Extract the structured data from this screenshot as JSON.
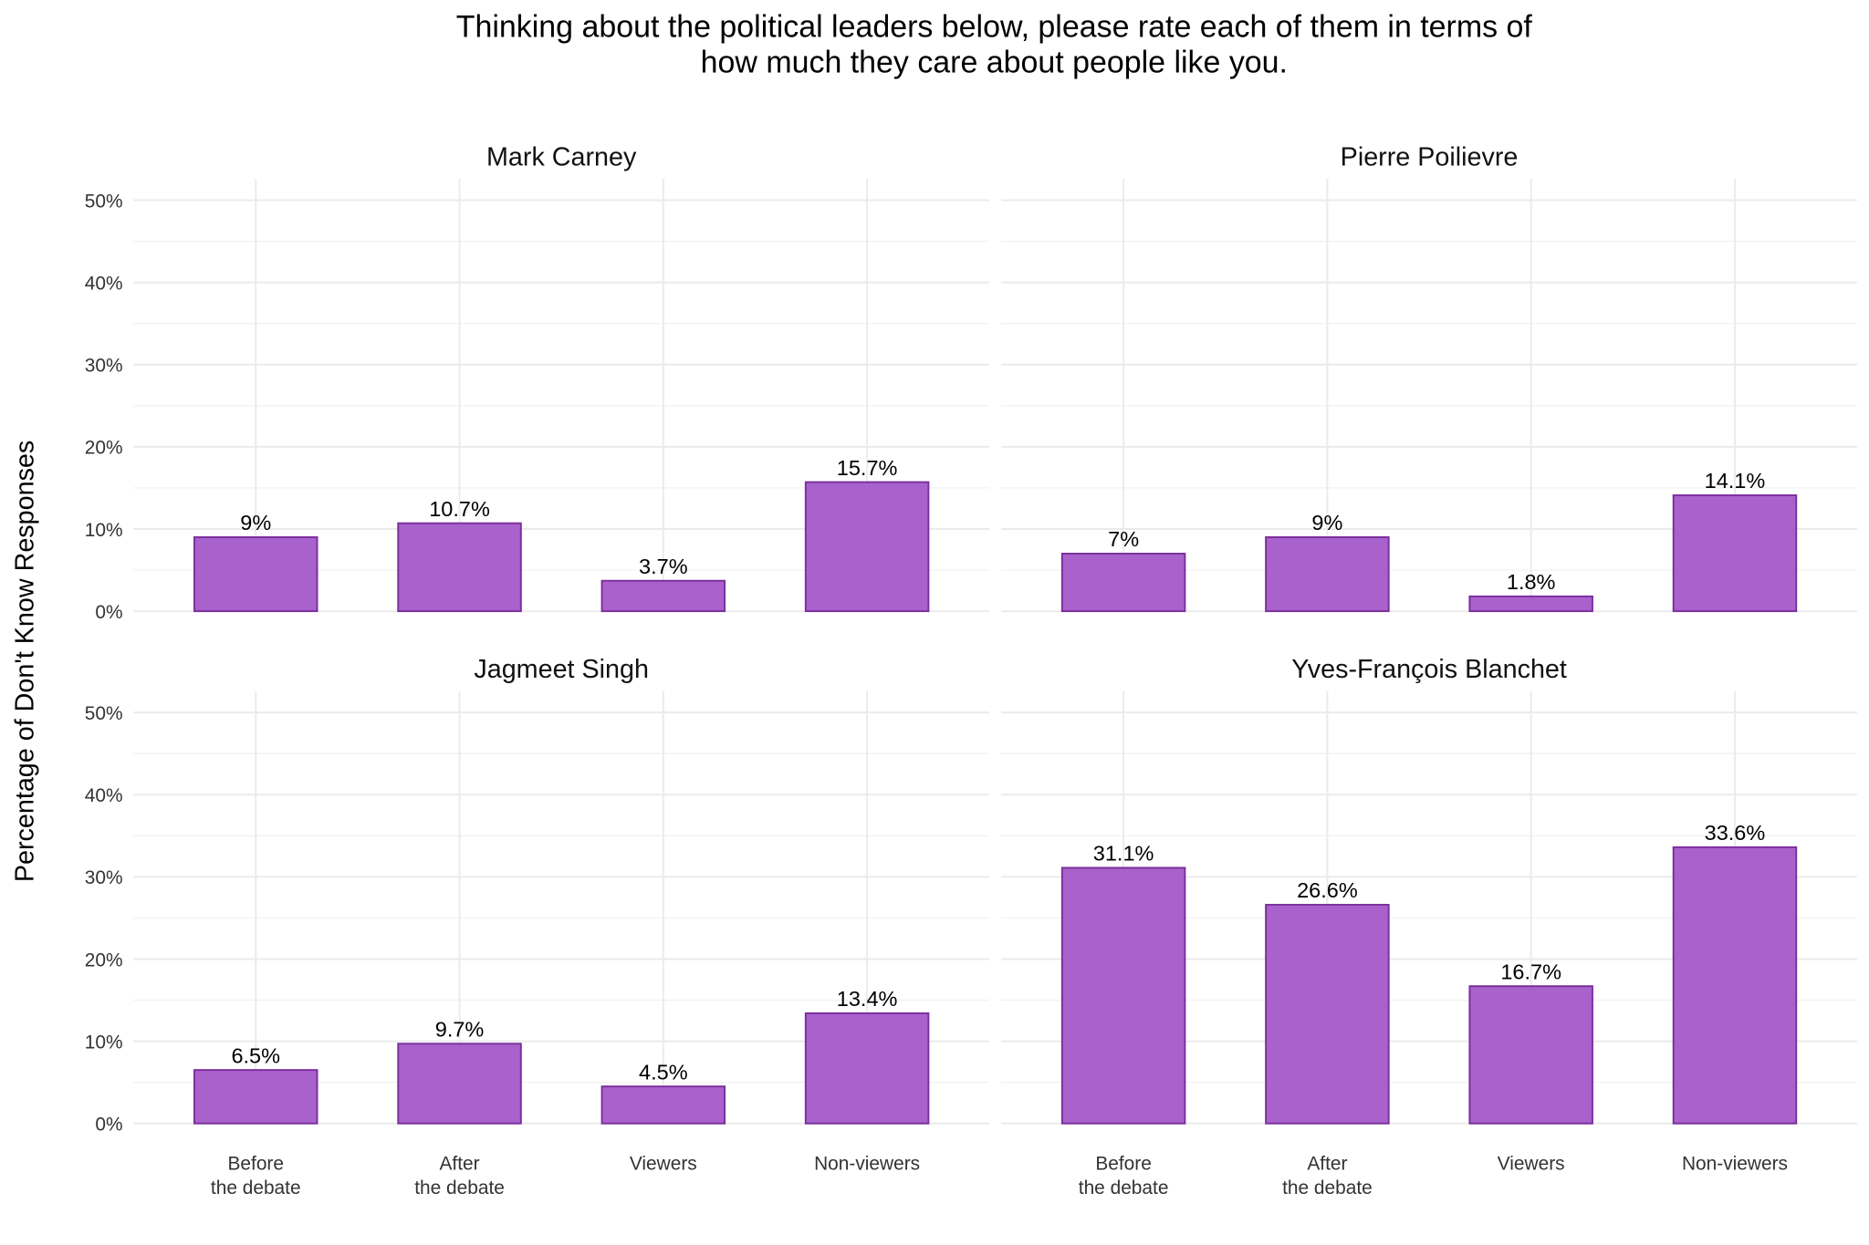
{
  "chart_data": {
    "type": "bar",
    "title": "Thinking about the political leaders below, please rate each of them in terms of\nhow much they care about people like you.",
    "ylabel": "Percentage of Don't Know Responses",
    "xlabel": "",
    "ylim": [
      0,
      50
    ],
    "yticks": [
      "0%",
      "10%",
      "20%",
      "30%",
      "40%",
      "50%"
    ],
    "grid": true,
    "categories": [
      "Before\nthe debate",
      "After\nthe debate",
      "Viewers",
      "Non-viewers"
    ],
    "colors": {
      "bar_fill": "#a962cc",
      "bar_stroke": "#7b2f9e",
      "grid": "#ebebeb"
    },
    "panels": [
      {
        "name": "Mark Carney",
        "values": [
          9,
          10.7,
          3.7,
          15.7
        ],
        "labels": [
          "9%",
          "10.7%",
          "3.7%",
          "15.7%"
        ]
      },
      {
        "name": "Pierre Poilievre",
        "values": [
          7,
          9,
          1.8,
          14.1
        ],
        "labels": [
          "7%",
          "9%",
          "1.8%",
          "14.1%"
        ]
      },
      {
        "name": "Jagmeet Singh",
        "values": [
          6.5,
          9.7,
          4.5,
          13.4
        ],
        "labels": [
          "6.5%",
          "9.7%",
          "4.5%",
          "13.4%"
        ]
      },
      {
        "name": "Yves-François Blanchet",
        "values": [
          31.1,
          26.6,
          16.7,
          33.6
        ],
        "labels": [
          "31.1%",
          "26.6%",
          "16.7%",
          "33.6%"
        ]
      }
    ]
  }
}
